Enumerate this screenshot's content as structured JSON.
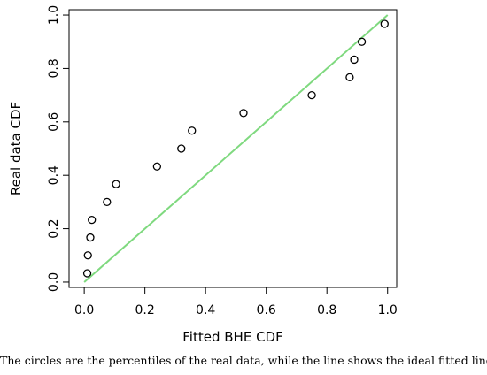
{
  "chart_data": {
    "type": "scatter",
    "xlabel": "Fitted BHE CDF",
    "ylabel": "Real data CDF",
    "xlim": [
      -0.05,
      1.03
    ],
    "ylim": [
      -0.02,
      1.02
    ],
    "x_ticks": [
      "0.0",
      "0.2",
      "0.4",
      "0.6",
      "0.8",
      "1.0"
    ],
    "y_ticks": [
      "0.0",
      "0.2",
      "0.4",
      "0.6",
      "0.8",
      "1.0"
    ],
    "grid": false,
    "legend": "none",
    "series": [
      {
        "kind": "points",
        "marker": "open-circle",
        "color": "#000000",
        "x": [
          0.01,
          0.012,
          0.02,
          0.025,
          0.075,
          0.105,
          0.24,
          0.32,
          0.355,
          0.525,
          0.75,
          0.875,
          0.89,
          0.915,
          0.99
        ],
        "y": [
          0.033,
          0.1,
          0.167,
          0.233,
          0.3,
          0.367,
          0.433,
          0.5,
          0.567,
          0.633,
          0.7,
          0.767,
          0.833,
          0.9,
          0.967
        ]
      },
      {
        "kind": "line",
        "color": "#7fd97f",
        "x": [
          0.0,
          1.0
        ],
        "y": [
          0.0,
          1.0
        ]
      }
    ]
  },
  "caption": "The circles are the percentiles of the real data, while the line shows the ideal fitted line."
}
